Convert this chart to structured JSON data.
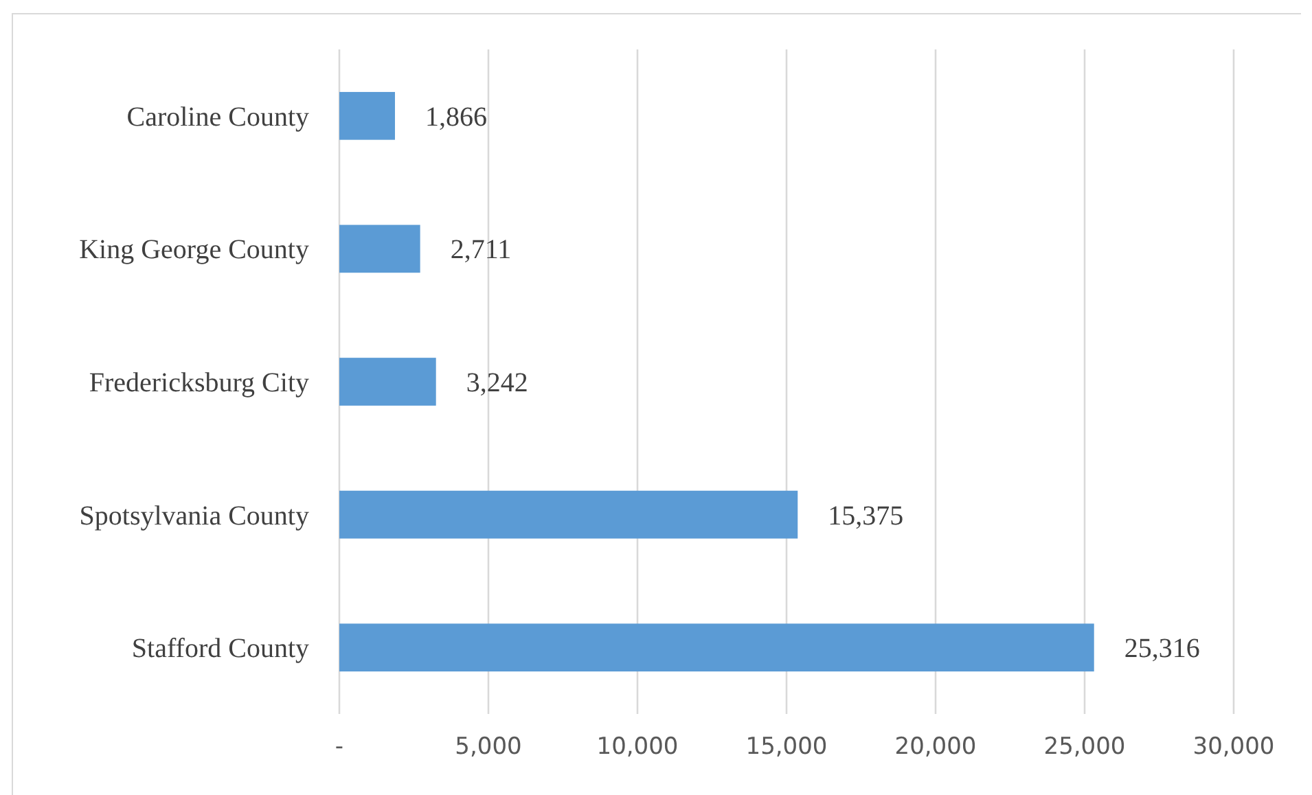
{
  "chart_data": {
    "type": "bar",
    "orientation": "horizontal",
    "categories": [
      "Caroline County",
      "King George County",
      "Fredericksburg City",
      "Spotsylvania County",
      "Stafford County"
    ],
    "values": [
      1866,
      2711,
      3242,
      15375,
      25316
    ],
    "color": "#5b9bd5",
    "xlim": [
      0,
      30000
    ],
    "xticks": [
      {
        "value": 0,
        "label": "-"
      },
      {
        "value": 5000,
        "label": "5,000"
      },
      {
        "value": 10000,
        "label": "10,000"
      },
      {
        "value": 15000,
        "label": "15,000"
      },
      {
        "value": 20000,
        "label": "20,000"
      },
      {
        "value": 25000,
        "label": "25,000"
      },
      {
        "value": 30000,
        "label": "30,000"
      }
    ],
    "value_labels": [
      "1,866",
      "2,711",
      "3,242",
      "15,375",
      "25,316"
    ],
    "grid": "x"
  }
}
